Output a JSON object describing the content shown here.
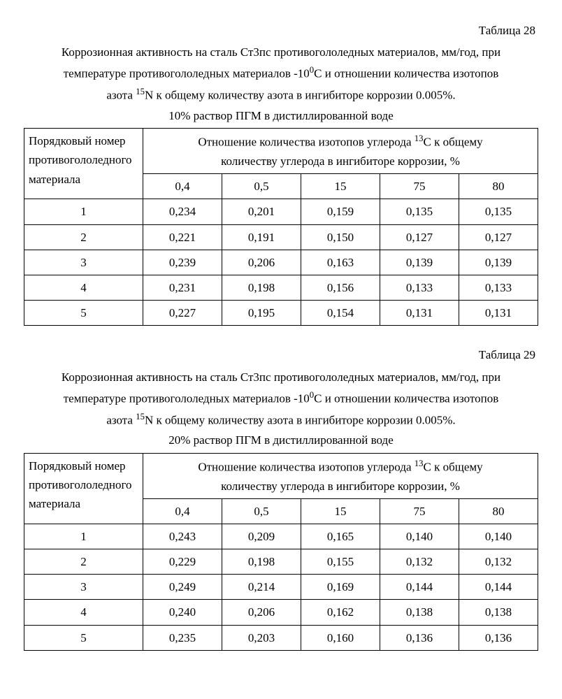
{
  "table28": {
    "label": "Таблица 28",
    "caption_line1": "Коррозионная активность на сталь Ст3пс противогололедных материалов, мм/год, при",
    "caption_line2_pre": "температуре противогололедных материалов -10",
    "caption_line2_sup": "0",
    "caption_line2_post": "С и отношении количества изотопов",
    "caption_line3_pre": "азота ",
    "caption_line3_sup": "15",
    "caption_line3_mid": "N  к общему количеству азота в ингибиторе коррозии 0.005%.",
    "caption_line4": "10% раствор ПГМ в дистиллированной воде",
    "row_header_l1": "Порядковый номер",
    "row_header_l2": "противогололедного",
    "row_header_l3": "материала",
    "group_header_pre": "Отношение количества изотопов углерода ",
    "group_header_sup": "13",
    "group_header_post": "С к общему",
    "group_header_l2": "количеству углерода в ингибиторе коррозии, %",
    "cols": [
      "0,4",
      "0,5",
      "15",
      "75",
      "80"
    ],
    "rows": [
      {
        "n": "1",
        "v": [
          "0,234",
          "0,201",
          "0,159",
          "0,135",
          "0,135"
        ]
      },
      {
        "n": "2",
        "v": [
          "0,221",
          "0,191",
          "0,150",
          "0,127",
          "0,127"
        ]
      },
      {
        "n": "3",
        "v": [
          "0,239",
          "0,206",
          "0,163",
          "0,139",
          "0,139"
        ]
      },
      {
        "n": "4",
        "v": [
          "0,231",
          "0,198",
          "0,156",
          "0,133",
          "0,133"
        ]
      },
      {
        "n": "5",
        "v": [
          "0,227",
          "0,195",
          "0,154",
          "0,131",
          "0,131"
        ]
      }
    ]
  },
  "table29": {
    "label": "Таблица 29",
    "caption_line1": "Коррозионная активность на сталь Ст3пс противогололедных материалов, мм/год, при",
    "caption_line2_pre": "температуре противогололедных материалов -10",
    "caption_line2_sup": "0",
    "caption_line2_post": "С и отношении количества изотопов",
    "caption_line3_pre": "азота ",
    "caption_line3_sup": "15",
    "caption_line3_mid": "N  к общему количеству азота в ингибиторе коррозии 0.005%.",
    "caption_line4": "20% раствор ПГМ в дистиллированной воде",
    "row_header_l1": "Порядковый номер",
    "row_header_l2": "противогололедного",
    "row_header_l3": "материала",
    "group_header_pre": "Отношение количества изотопов углерода ",
    "group_header_sup": "13",
    "group_header_post": "С к общему",
    "group_header_l2": "количеству углерода в ингибиторе коррозии, %",
    "cols": [
      "0,4",
      "0,5",
      "15",
      "75",
      "80"
    ],
    "rows": [
      {
        "n": "1",
        "v": [
          "0,243",
          "0,209",
          "0,165",
          "0,140",
          "0,140"
        ]
      },
      {
        "n": "2",
        "v": [
          "0,229",
          "0,198",
          "0,155",
          "0,132",
          "0,132"
        ]
      },
      {
        "n": "3",
        "v": [
          "0,249",
          "0,214",
          "0,169",
          "0,144",
          "0,144"
        ]
      },
      {
        "n": "4",
        "v": [
          "0,240",
          "0,206",
          "0,162",
          "0,138",
          "0,138"
        ]
      },
      {
        "n": "5",
        "v": [
          "0,235",
          "0,203",
          "0,160",
          "0,136",
          "0,136"
        ]
      }
    ]
  }
}
